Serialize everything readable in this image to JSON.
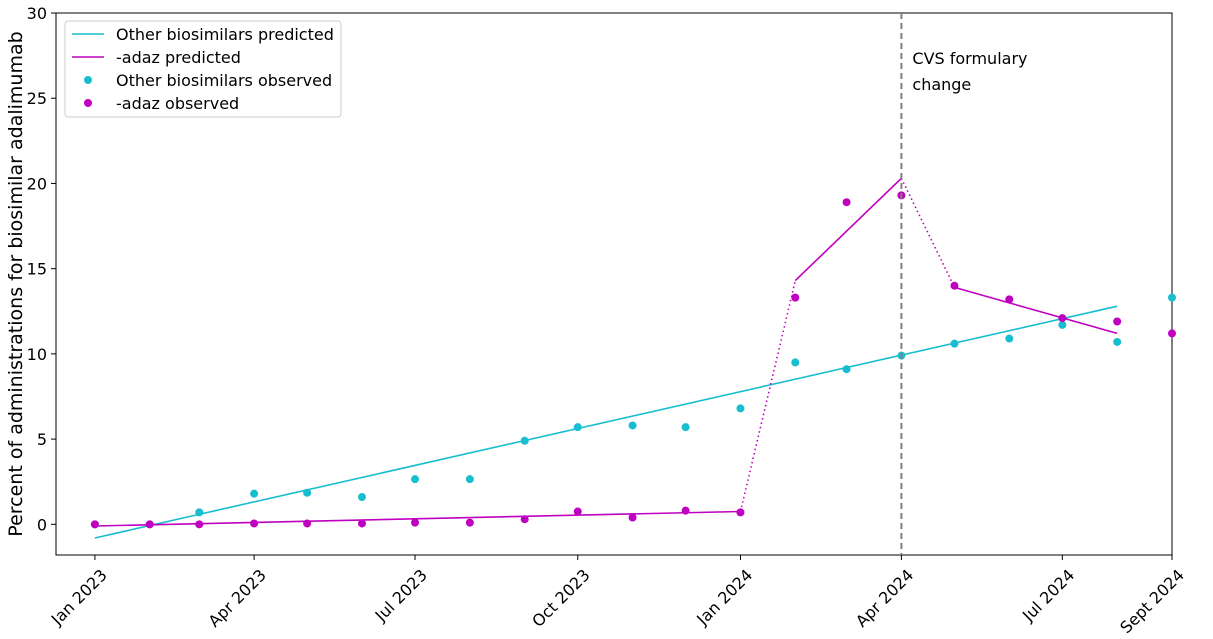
{
  "chart_data": {
    "type": "line",
    "ylabel": "Percent of administrations for biosimilar adalimumab",
    "xlabel": "",
    "ylim": [
      -1.8,
      30
    ],
    "yticks": [
      0,
      5,
      10,
      15,
      20,
      25,
      30
    ],
    "xlim": [
      "2022-12-10",
      "2024-09-01"
    ],
    "xticks": [
      {
        "date": "2023-01-01",
        "label": "Jan 2023"
      },
      {
        "date": "2023-04-01",
        "label": "Apr 2023"
      },
      {
        "date": "2023-07-01",
        "label": "Jul 2023"
      },
      {
        "date": "2023-10-01",
        "label": "Oct 2023"
      },
      {
        "date": "2024-01-01",
        "label": "Jan 2024"
      },
      {
        "date": "2024-04-01",
        "label": "Apr 2024"
      },
      {
        "date": "2024-07-01",
        "label": "Jul 2024"
      },
      {
        "date": "2024-09-01",
        "label": "Sept 2024"
      }
    ],
    "vline": {
      "date": "2024-04-01",
      "label_lines": [
        "CVS formulary",
        "change"
      ],
      "style": "dashed",
      "color": "#808080"
    },
    "legend": {
      "position": "upper-left",
      "entries": [
        {
          "label": "Other biosimilars predicted",
          "kind": "line",
          "color": "#17BECF"
        },
        {
          "label": "-adaz predicted",
          "kind": "line",
          "color": "#C000C0"
        },
        {
          "label": "Other biosimilars observed",
          "kind": "marker",
          "color": "#17BECF"
        },
        {
          "label": "-adaz observed",
          "kind": "marker",
          "color": "#C000C0"
        }
      ]
    },
    "series": [
      {
        "name": "Other biosimilars predicted",
        "kind": "line",
        "color": "#17BECF",
        "segments": [
          {
            "style": "solid",
            "points": [
              [
                "2023-01-01",
                -0.8
              ],
              [
                "2024-08-01",
                12.8
              ]
            ]
          }
        ]
      },
      {
        "name": "-adaz predicted",
        "kind": "line",
        "color": "#C000C0",
        "segments": [
          {
            "style": "solid",
            "points": [
              [
                "2023-01-01",
                -0.1
              ],
              [
                "2024-01-01",
                0.75
              ]
            ]
          },
          {
            "style": "dotted",
            "points": [
              [
                "2024-01-01",
                0.75
              ],
              [
                "2024-02-01",
                14.3
              ]
            ]
          },
          {
            "style": "solid",
            "points": [
              [
                "2024-02-01",
                14.3
              ],
              [
                "2024-04-01",
                20.3
              ]
            ]
          },
          {
            "style": "dotted",
            "points": [
              [
                "2024-04-01",
                20.3
              ],
              [
                "2024-05-01",
                13.9
              ]
            ]
          },
          {
            "style": "solid",
            "points": [
              [
                "2024-05-01",
                13.9
              ],
              [
                "2024-08-01",
                11.2
              ]
            ]
          }
        ]
      },
      {
        "name": "Other biosimilars observed",
        "kind": "scatter",
        "color": "#17BECF",
        "points": [
          [
            "2023-01-01",
            0.0
          ],
          [
            "2023-02-01",
            0.0
          ],
          [
            "2023-03-01",
            0.7
          ],
          [
            "2023-04-01",
            1.8
          ],
          [
            "2023-05-01",
            1.85
          ],
          [
            "2023-06-01",
            1.6
          ],
          [
            "2023-07-01",
            2.65
          ],
          [
            "2023-08-01",
            2.65
          ],
          [
            "2023-09-01",
            4.9
          ],
          [
            "2023-10-01",
            5.7
          ],
          [
            "2023-11-01",
            5.8
          ],
          [
            "2023-12-01",
            5.7
          ],
          [
            "2024-01-01",
            6.8
          ],
          [
            "2024-02-01",
            9.5
          ],
          [
            "2024-03-01",
            9.1
          ],
          [
            "2024-04-01",
            9.9
          ],
          [
            "2024-05-01",
            10.6
          ],
          [
            "2024-06-01",
            10.9
          ],
          [
            "2024-07-01",
            11.7
          ],
          [
            "2024-08-01",
            10.7
          ],
          [
            "2024-09-01",
            13.3
          ]
        ]
      },
      {
        "name": "-adaz observed",
        "kind": "scatter",
        "color": "#C000C0",
        "points": [
          [
            "2023-01-01",
            0.0
          ],
          [
            "2023-02-01",
            0.0
          ],
          [
            "2023-03-01",
            0.0
          ],
          [
            "2023-04-01",
            0.05
          ],
          [
            "2023-05-01",
            0.05
          ],
          [
            "2023-06-01",
            0.05
          ],
          [
            "2023-07-01",
            0.1
          ],
          [
            "2023-08-01",
            0.1
          ],
          [
            "2023-09-01",
            0.3
          ],
          [
            "2023-10-01",
            0.75
          ],
          [
            "2023-11-01",
            0.4
          ],
          [
            "2023-12-01",
            0.8
          ],
          [
            "2024-01-01",
            0.7
          ],
          [
            "2024-02-01",
            13.3
          ],
          [
            "2024-03-01",
            18.9
          ],
          [
            "2024-04-01",
            19.3
          ],
          [
            "2024-05-01",
            14.0
          ],
          [
            "2024-06-01",
            13.2
          ],
          [
            "2024-07-01",
            12.1
          ],
          [
            "2024-08-01",
            11.9
          ],
          [
            "2024-09-01",
            11.2
          ]
        ]
      }
    ]
  }
}
